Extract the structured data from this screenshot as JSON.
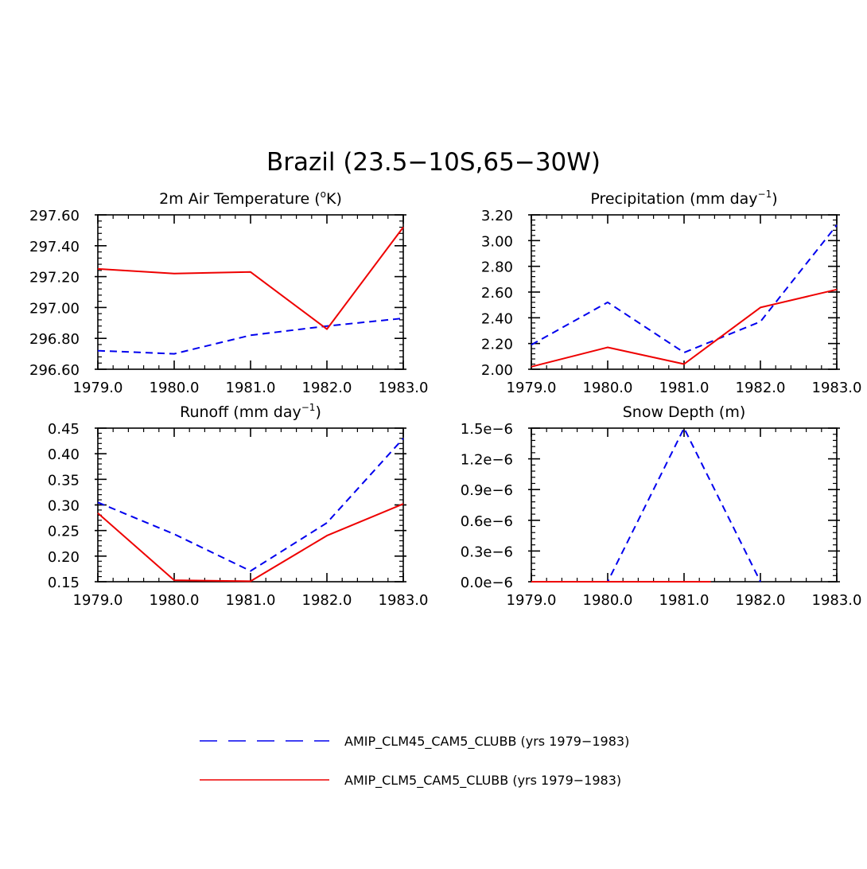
{
  "figure_title": "Brazil (23.5−10S,65−30W)",
  "chart_data": [
    {
      "type": "line",
      "title_main": "2m Air Temperature (",
      "title_sup": "o",
      "title_tail": "K)",
      "x": [
        1979,
        1980,
        1981,
        1982,
        1983
      ],
      "xlim": [
        1979,
        1983
      ],
      "ylim": [
        296.6,
        297.6
      ],
      "xticks": [
        "1979.0",
        "1980.0",
        "1981.0",
        "1982.0",
        "1983.0"
      ],
      "yticks": [
        "296.60",
        "296.80",
        "297.00",
        "297.20",
        "297.40",
        "297.60"
      ],
      "series": [
        {
          "name": "AMIP_CLM45_CAM5_CLUBB (yrs 1979−1983)",
          "color": "#0000ee",
          "dash": true,
          "values": [
            296.72,
            296.7,
            296.82,
            296.88,
            296.93
          ]
        },
        {
          "name": "AMIP_CLM5_CAM5_CLUBB (yrs 1979−1983)",
          "color": "#ee0000",
          "dash": false,
          "values": [
            297.25,
            297.22,
            297.23,
            296.86,
            297.52
          ]
        }
      ]
    },
    {
      "type": "line",
      "title_main": "Precipitation (mm day",
      "title_sup": "−1",
      "title_tail": ")",
      "x": [
        1979,
        1980,
        1981,
        1982,
        1983
      ],
      "xlim": [
        1979,
        1983
      ],
      "ylim": [
        2.0,
        3.2
      ],
      "xticks": [
        "1979.0",
        "1980.0",
        "1981.0",
        "1982.0",
        "1983.0"
      ],
      "yticks": [
        "2.00",
        "2.20",
        "2.40",
        "2.60",
        "2.80",
        "3.00",
        "3.20"
      ],
      "series": [
        {
          "name": "AMIP_CLM45_CAM5_CLUBB (yrs 1979−1983)",
          "color": "#0000ee",
          "dash": true,
          "values": [
            2.19,
            2.52,
            2.13,
            2.37,
            3.12
          ]
        },
        {
          "name": "AMIP_CLM5_CAM5_CLUBB (yrs 1979−1983)",
          "color": "#ee0000",
          "dash": false,
          "values": [
            2.02,
            2.17,
            2.04,
            2.48,
            2.62
          ]
        }
      ]
    },
    {
      "type": "line",
      "title_main": "Runoff (mm day",
      "title_sup": "−1",
      "title_tail": ")",
      "x": [
        1979,
        1980,
        1981,
        1982,
        1983
      ],
      "xlim": [
        1979,
        1983
      ],
      "ylim": [
        0.15,
        0.45
      ],
      "xticks": [
        "1979.0",
        "1980.0",
        "1981.0",
        "1982.0",
        "1983.0"
      ],
      "yticks": [
        "0.15",
        "0.20",
        "0.25",
        "0.30",
        "0.35",
        "0.40",
        "0.45"
      ],
      "series": [
        {
          "name": "AMIP_CLM45_CAM5_CLUBB (yrs 1979−1983)",
          "color": "#0000ee",
          "dash": true,
          "values": [
            0.305,
            0.243,
            0.171,
            0.265,
            0.43
          ]
        },
        {
          "name": "AMIP_CLM5_CAM5_CLUBB (yrs 1979−1983)",
          "color": "#ee0000",
          "dash": false,
          "values": [
            0.284,
            0.153,
            0.151,
            0.24,
            0.302
          ]
        }
      ]
    },
    {
      "type": "line",
      "title_main": "Snow Depth (m)",
      "title_sup": "",
      "title_tail": "",
      "x": [
        1979,
        1980,
        1981,
        1982,
        1983
      ],
      "xlim": [
        1979,
        1983
      ],
      "ylim": [
        0.0,
        1.5e-06
      ],
      "xticks": [
        "1979.0",
        "1980.0",
        "1981.0",
        "1982.0",
        "1983.0"
      ],
      "yticks": [
        "0.0e−6",
        "0.3e−6",
        "0.6e−6",
        "0.9e−6",
        "1.2e−6",
        "1.5e−6"
      ],
      "series": [
        {
          "name": "AMIP_CLM45_CAM5_CLUBB (yrs 1979−1983)",
          "color": "#0000ee",
          "dash": true,
          "values": [
            0.0,
            0.0,
            1.5e-06,
            0.0,
            null
          ]
        },
        {
          "name": "AMIP_CLM5_CAM5_CLUBB (yrs 1979−1983)",
          "color": "#ee0000",
          "dash": false,
          "values": [
            0.0,
            0.0,
            0.0,
            null,
            null
          ]
        }
      ]
    }
  ],
  "legend": [
    {
      "label": "AMIP_CLM45_CAM5_CLUBB (yrs 1979−1983)",
      "color": "#0000ee",
      "dash": true
    },
    {
      "label": "AMIP_CLM5_CAM5_CLUBB (yrs 1979−1983)",
      "color": "#ee0000",
      "dash": false
    }
  ]
}
